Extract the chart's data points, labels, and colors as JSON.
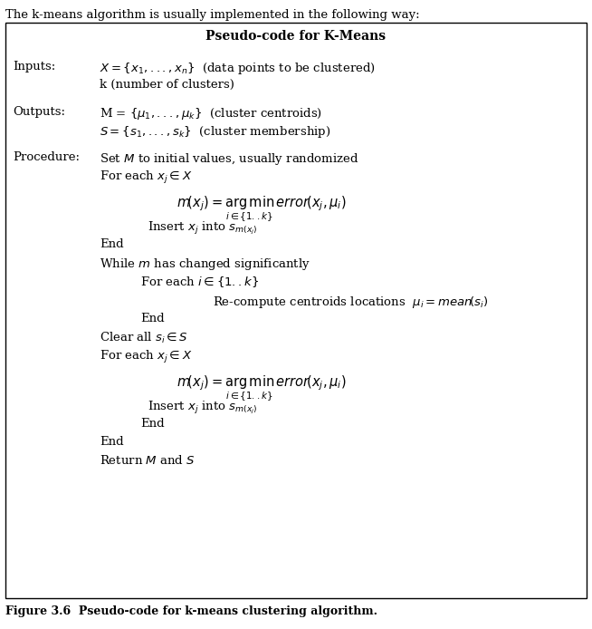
{
  "title_above": "The k-means algorithm is usually implemented in the following way:",
  "box_title": "Pseudo-code for K-Means",
  "figure_caption": "Figure 3.6  Pseudo-code for k-means clustering algorithm.",
  "background_color": "#ffffff",
  "box_color": "#000000",
  "text_color": "#000000",
  "figsize": [
    6.54,
    6.94
  ],
  "dpi": 100
}
